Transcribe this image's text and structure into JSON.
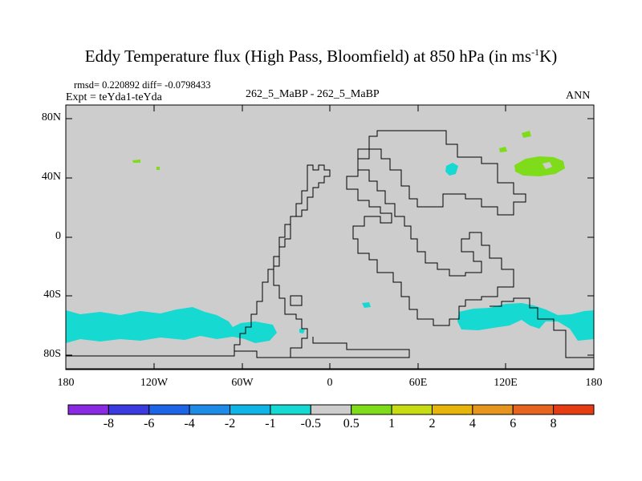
{
  "title": {
    "main": "Eddy Temperature flux (High Pass, Bloomfield) at 850 hPa (in ms",
    "exp": "-1",
    "tail": "K)"
  },
  "stats": {
    "rmsd_diff": "rmsd= 0.220892 diff= -0.0798433",
    "expt": "Expt = teYda1-teYda",
    "center": "262_5_MaBP - 262_5_MaBP",
    "season": "ANN"
  },
  "axes": {
    "lat_labels": [
      "80N",
      "40N",
      "0",
      "40S",
      "80S"
    ],
    "lon_labels": [
      "180",
      "120W",
      "60W",
      "0",
      "60E",
      "120E",
      "180"
    ]
  },
  "colorbar": {
    "labels": [
      "-8",
      "-6",
      "-4",
      "-2",
      "-1",
      "-0.5",
      "0.5",
      "1",
      "2",
      "4",
      "6",
      "8"
    ],
    "colors": [
      "#8a2be2",
      "#3a3adf",
      "#1e64e6",
      "#1e8ce6",
      "#10b4e6",
      "#16d9d2",
      "#cdcdcd",
      "#7fdc1a",
      "#c8dc14",
      "#e6b40a",
      "#e6961e",
      "#e6641e",
      "#e63c14"
    ]
  },
  "map": {
    "background": "#cdcdcd",
    "negative_fill": "#16d9d2",
    "positive_fill": "#7fdc1a"
  }
}
